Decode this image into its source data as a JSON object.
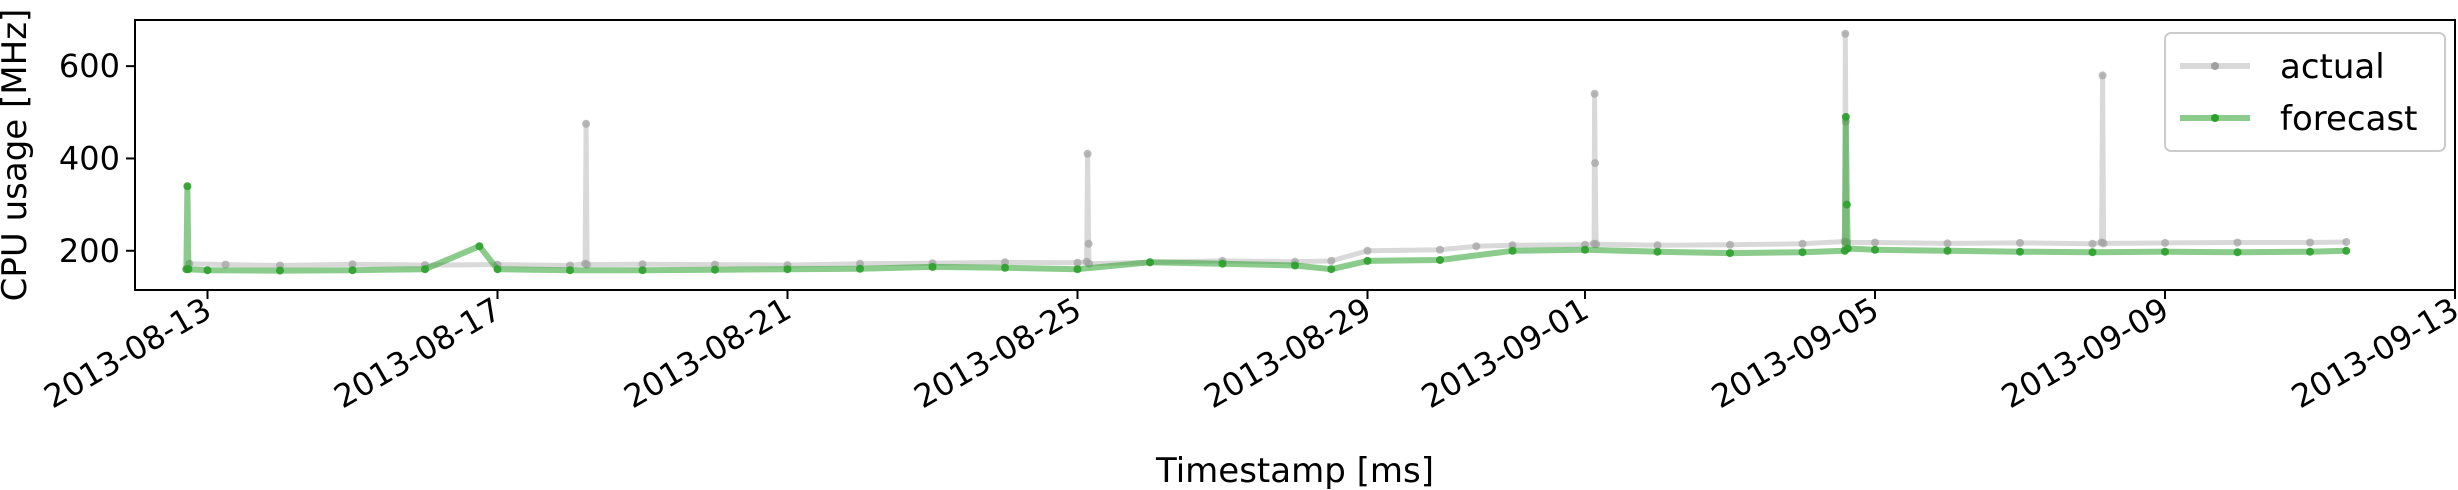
{
  "chart_data": {
    "type": "line",
    "xlabel": "Timestamp [ms]",
    "ylabel": "CPU usage [MHz]",
    "xlim": [
      "2013-08-12T00:00:00",
      "2013-09-13T00:00:00"
    ],
    "ylim": [
      115,
      700
    ],
    "x_ticks": [
      "2013-08-13",
      "2013-08-17",
      "2013-08-21",
      "2013-08-25",
      "2013-08-29",
      "2013-09-01",
      "2013-09-05",
      "2013-09-09",
      "2013-09-13"
    ],
    "y_ticks": [
      200,
      400,
      600
    ],
    "grid": false,
    "legend_position": "upper right",
    "series": [
      {
        "name": "actual",
        "color": "#a0a0a0",
        "line_opacity": 0.4,
        "x": [
          "2013-08-12T18:00",
          "2013-08-13T06:00",
          "2013-08-14T00:00",
          "2013-08-15T00:00",
          "2013-08-16T00:00",
          "2013-08-17T00:00",
          "2013-08-18T00:00",
          "2013-08-18T05:00",
          "2013-08-18T05:20",
          "2013-08-18T05:40",
          "2013-08-19T00:00",
          "2013-08-20T00:00",
          "2013-08-21T00:00",
          "2013-08-22T00:00",
          "2013-08-23T00:00",
          "2013-08-24T00:00",
          "2013-08-25T00:00",
          "2013-08-25T03:00",
          "2013-08-25T03:20",
          "2013-08-25T03:40",
          "2013-08-25T03:50",
          "2013-08-26T00:00",
          "2013-08-27T00:00",
          "2013-08-28T00:00",
          "2013-08-28T12:00",
          "2013-08-29T00:00",
          "2013-08-30T00:00",
          "2013-08-30T12:00",
          "2013-08-31T00:00",
          "2013-09-01T00:00",
          "2013-09-01T03:00",
          "2013-09-01T03:10",
          "2013-09-01T03:20",
          "2013-09-01T03:40",
          "2013-09-02T00:00",
          "2013-09-03T00:00",
          "2013-09-04T00:00",
          "2013-09-04T14:00",
          "2013-09-04T14:10",
          "2013-09-04T14:20",
          "2013-09-04T14:40",
          "2013-09-05T00:00",
          "2013-09-06T00:00",
          "2013-09-07T00:00",
          "2013-09-08T00:00",
          "2013-09-08T03:00",
          "2013-09-08T03:20",
          "2013-09-08T03:40",
          "2013-09-09T00:00",
          "2013-09-10T00:00",
          "2013-09-11T00:00",
          "2013-09-11T12:00"
        ],
        "y": [
          172,
          170,
          168,
          171,
          169,
          170,
          168,
          172,
          475,
          170,
          171,
          170,
          169,
          172,
          173,
          175,
          174,
          176,
          410,
          215,
          172,
          175,
          178,
          176,
          178,
          200,
          202,
          210,
          212,
          213,
          215,
          540,
          390,
          214,
          212,
          213,
          215,
          220,
          670,
          480,
          218,
          218,
          216,
          217,
          215,
          218,
          580,
          216,
          217,
          218,
          218,
          219
        ]
      },
      {
        "name": "forecast",
        "color": "#2ca02c",
        "line_opacity": 0.55,
        "x": [
          "2013-08-12T17:00",
          "2013-08-12T17:20",
          "2013-08-12T17:40",
          "2013-08-13T00:00",
          "2013-08-14T00:00",
          "2013-08-15T00:00",
          "2013-08-16T00:00",
          "2013-08-16T18:00",
          "2013-08-17T00:00",
          "2013-08-18T00:00",
          "2013-08-19T00:00",
          "2013-08-20T00:00",
          "2013-08-21T00:00",
          "2013-08-22T00:00",
          "2013-08-23T00:00",
          "2013-08-24T00:00",
          "2013-08-25T00:00",
          "2013-08-26T00:00",
          "2013-08-27T00:00",
          "2013-08-28T00:00",
          "2013-08-28T12:00",
          "2013-08-29T00:00",
          "2013-08-30T00:00",
          "2013-08-31T00:00",
          "2013-09-01T00:00",
          "2013-09-02T00:00",
          "2013-09-03T00:00",
          "2013-09-04T00:00",
          "2013-09-04T14:00",
          "2013-09-04T14:20",
          "2013-09-04T14:40",
          "2013-09-04T15:00",
          "2013-09-05T00:00",
          "2013-09-06T00:00",
          "2013-09-07T00:00",
          "2013-09-08T00:00",
          "2013-09-09T00:00",
          "2013-09-10T00:00",
          "2013-09-11T00:00",
          "2013-09-11T12:00"
        ],
        "y": [
          160,
          340,
          160,
          158,
          157,
          158,
          160,
          210,
          160,
          158,
          158,
          159,
          160,
          161,
          165,
          163,
          160,
          175,
          172,
          168,
          160,
          178,
          180,
          200,
          202,
          198,
          195,
          197,
          200,
          490,
          300,
          205,
          202,
          200,
          198,
          197,
          198,
          197,
          198,
          200
        ]
      }
    ]
  }
}
